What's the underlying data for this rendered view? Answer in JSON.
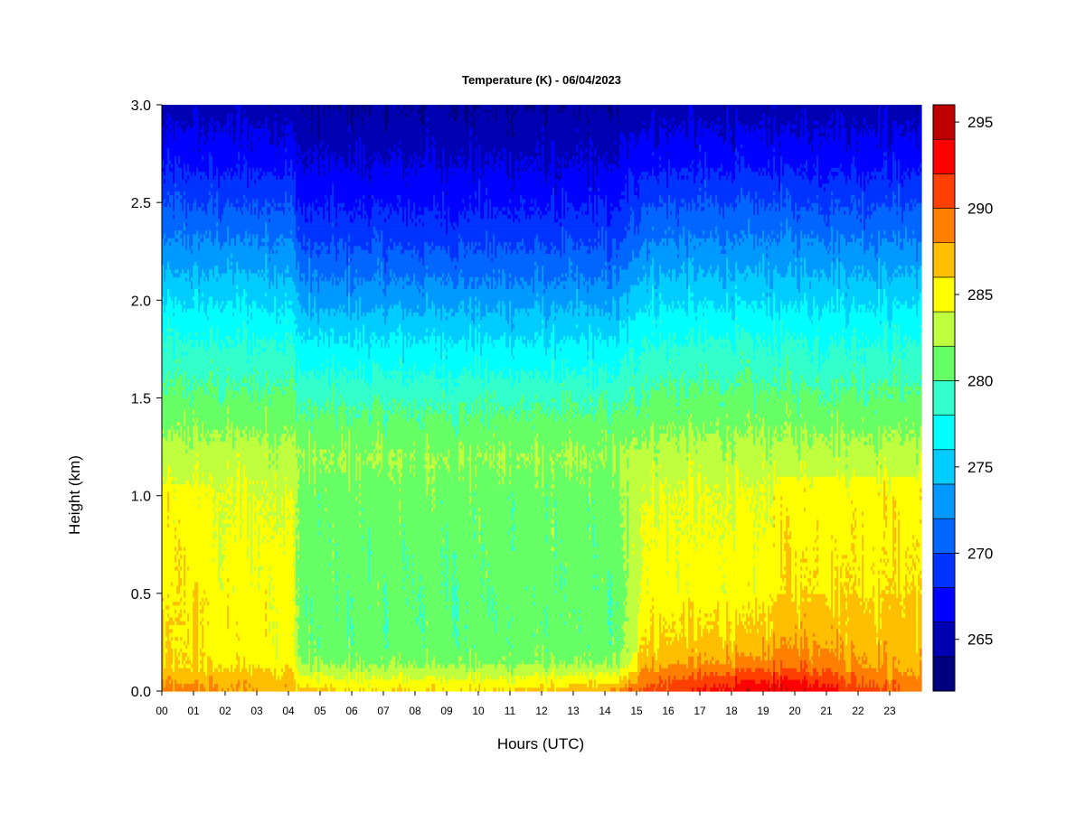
{
  "chart_data": {
    "type": "heatmap",
    "title": "Temperature (K) - 06/04/2023",
    "xlabel": "Hours (UTC)",
    "ylabel": "Height (km)",
    "x_ticks": [
      "00",
      "01",
      "02",
      "03",
      "04",
      "05",
      "06",
      "07",
      "08",
      "09",
      "10",
      "11",
      "12",
      "13",
      "14",
      "15",
      "16",
      "17",
      "18",
      "19",
      "20",
      "21",
      "22",
      "23"
    ],
    "xlim": [
      0,
      24
    ],
    "y_ticks": [
      "0.0",
      "0.5",
      "1.0",
      "1.5",
      "2.0",
      "2.5",
      "3.0"
    ],
    "ylim": [
      0,
      3.0
    ],
    "colorbar": {
      "range": [
        262,
        296
      ],
      "levels": [
        262,
        264,
        266,
        268,
        270,
        272,
        274,
        276,
        278,
        280,
        282,
        284,
        286,
        288,
        290,
        292,
        294,
        296
      ],
      "colors": [
        "#00007f",
        "#0000b2",
        "#0000ff",
        "#0033ff",
        "#0066ff",
        "#0099ff",
        "#00ccff",
        "#00ffff",
        "#33ffcc",
        "#66ff66",
        "#bfff3f",
        "#ffff00",
        "#ffbf00",
        "#ff8000",
        "#ff4000",
        "#ff0000",
        "#bf0000",
        "#800000"
      ],
      "ticks": [
        "265",
        "270",
        "275",
        "280",
        "285",
        "290",
        "295"
      ],
      "tick_values": [
        265,
        270,
        275,
        280,
        285,
        290,
        295
      ]
    },
    "grid": false,
    "legend": "colorbar-right",
    "description_of_field": {
      "x_hours": [
        0,
        2,
        4,
        4.3,
        6,
        8,
        10,
        12,
        14,
        15,
        16,
        17,
        18,
        19,
        20,
        21,
        22,
        23,
        24
      ],
      "surface_K": [
        289,
        288,
        287,
        287,
        286,
        286,
        286,
        287,
        288,
        290,
        291,
        292,
        293,
        294,
        294,
        293,
        291,
        290,
        289
      ],
      "height_km_nodes": [
        0,
        0.15,
        0.4,
        0.7,
        1.0,
        1.2,
        1.5,
        1.8,
        2.1,
        2.4,
        2.7,
        3.0
      ],
      "profile_night_K": [
        288,
        285,
        285,
        284.5,
        284,
        283,
        280.5,
        278,
        274.5,
        271,
        267.5,
        265
      ],
      "profile_day_K": [
        284,
        281,
        280.5,
        280.8,
        281,
        282,
        279.5,
        276,
        272,
        268.5,
        266,
        264
      ]
    }
  }
}
